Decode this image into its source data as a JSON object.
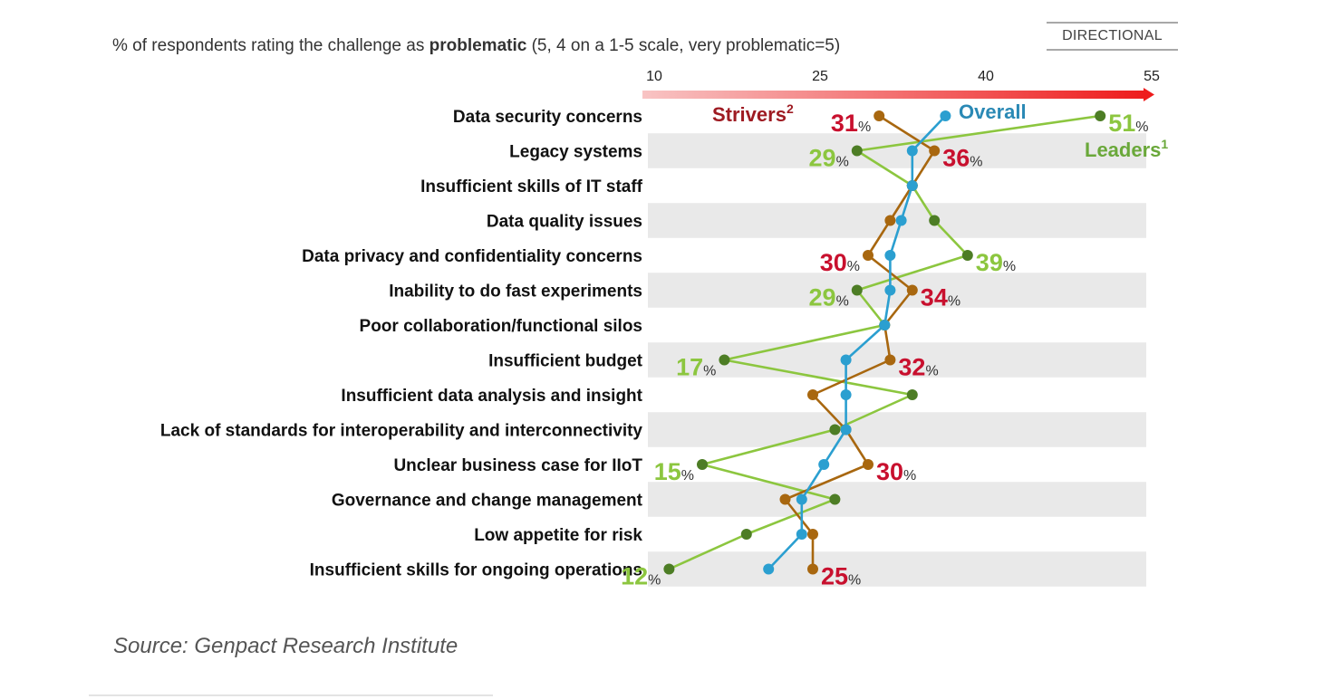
{
  "header": {
    "subtitle_pre": "% of respondents rating the challenge as ",
    "subtitle_bold": "problematic",
    "subtitle_post": " (5, 4 on a 1-5 scale, very problematic=5)",
    "badge": "DIRECTIONAL"
  },
  "footer": {
    "source": "Source: Genpact Research Institute"
  },
  "colors": {
    "overall": "#2b9fd0",
    "strivers_line": "#a8670f",
    "strivers_dot": "#a8670f",
    "strivers_label": "#c8102e",
    "strivers_legend": "#9e1b22",
    "leaders_line": "#8cc63f",
    "leaders_dot": "#4d7d25",
    "leaders_label": "#8cc63f",
    "leaders_legend": "#6aa83a",
    "overall_legend": "#2a89b5",
    "stripe": "#e9e9e9",
    "arrow_start": "#f8c4c4",
    "arrow_end": "#ee1c1c"
  },
  "chart_data": {
    "type": "line",
    "orientation": "horizontal-dot-plot",
    "title": "% of respondents rating the challenge as problematic (5, 4 on a 1-5 scale, very problematic=5)",
    "xlabel": "",
    "ylabel": "",
    "xlim": [
      10,
      55
    ],
    "xticks": [
      10,
      25,
      40,
      55
    ],
    "grid": false,
    "legend": "inline-top",
    "annotation": "DIRECTIONAL",
    "categories": [
      "Data security concerns",
      "Legacy systems",
      "Insufficient skills of IT staff",
      "Data quality issues",
      "Data privacy and confidentiality concerns",
      "Inability to do fast experiments",
      "Poor collaboration/functional silos",
      "Insufficient budget",
      "Insufficient data analysis and insight",
      "Lack of standards for interoperability and interconnectivity",
      "Unclear business case for IIoT",
      "Governance and change management",
      "Low appetite for risk",
      "Insufficient skills for ongoing operations"
    ],
    "series": [
      {
        "name": "Overall",
        "key": "overall",
        "values": [
          37,
          34,
          34,
          33,
          32,
          32,
          31.5,
          28,
          28,
          28,
          26,
          24,
          24,
          21
        ]
      },
      {
        "name": "Strivers",
        "superscript": "2",
        "key": "strivers",
        "values": [
          31,
          36,
          34,
          32,
          30,
          34,
          31.5,
          32,
          25,
          28,
          30,
          22.5,
          25,
          25
        ]
      },
      {
        "name": "Leaders",
        "superscript": "1",
        "key": "leaders",
        "values": [
          51,
          29,
          34,
          36,
          39,
          29,
          31.5,
          17,
          34,
          27,
          15,
          27,
          19,
          12
        ]
      }
    ],
    "data_labels": [
      {
        "series": "strivers",
        "row": 0,
        "text": "31",
        "side": "left"
      },
      {
        "series": "leaders",
        "row": 0,
        "text": "51",
        "side": "right"
      },
      {
        "series": "leaders",
        "row": 1,
        "text": "29",
        "side": "left"
      },
      {
        "series": "strivers",
        "row": 1,
        "text": "36",
        "side": "right"
      },
      {
        "series": "strivers",
        "row": 4,
        "text": "30",
        "side": "left"
      },
      {
        "series": "leaders",
        "row": 4,
        "text": "39",
        "side": "right"
      },
      {
        "series": "leaders",
        "row": 5,
        "text": "29",
        "side": "left"
      },
      {
        "series": "strivers",
        "row": 5,
        "text": "34",
        "side": "right"
      },
      {
        "series": "leaders",
        "row": 7,
        "text": "17",
        "side": "left"
      },
      {
        "series": "strivers",
        "row": 7,
        "text": "32",
        "side": "right"
      },
      {
        "series": "leaders",
        "row": 10,
        "text": "15",
        "side": "left"
      },
      {
        "series": "strivers",
        "row": 10,
        "text": "30",
        "side": "right"
      },
      {
        "series": "leaders",
        "row": 13,
        "text": "12",
        "side": "left"
      },
      {
        "series": "strivers",
        "row": 13,
        "text": "25",
        "side": "right"
      }
    ],
    "percent_suffix": "%"
  }
}
